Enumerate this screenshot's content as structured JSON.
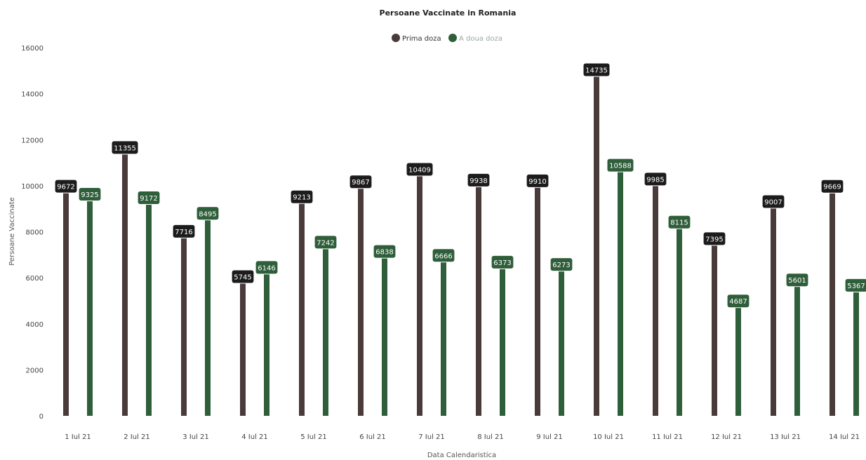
{
  "chart_data": {
    "type": "bar",
    "title": "Persoane Vaccinate in Romania",
    "xlabel": "Data Calendaristica",
    "ylabel": "Persoane Vaccinate",
    "ylim": [
      0,
      16000
    ],
    "yticks": [
      "0",
      "2000",
      "4000",
      "6000",
      "8000",
      "10000",
      "12000",
      "14000",
      "16000"
    ],
    "categories": [
      "1 Iul 21",
      "2 Iul 21",
      "3 Iul 21",
      "4 Iul 21",
      "5 Iul 21",
      "6 Iul 21",
      "7 Iul 21",
      "8 Iul 21",
      "9 Iul 21",
      "10 Iul 21",
      "11 Iul 21",
      "12 Iul 21",
      "13 Iul 21",
      "14 Iul 21"
    ],
    "series": [
      {
        "name": "Prima doza",
        "color": "#4a3b3b",
        "values": [
          9672,
          11355,
          7716,
          5745,
          9213,
          9867,
          10409,
          9938,
          9910,
          14735,
          9985,
          7395,
          9007,
          9669
        ]
      },
      {
        "name": "A doua doza",
        "color": "#2f5e3a",
        "values": [
          9325,
          9172,
          8495,
          6146,
          7242,
          6838,
          6666,
          6373,
          6273,
          10588,
          8115,
          4687,
          5601,
          5367
        ]
      }
    ],
    "grid": false,
    "legend_position": "top-center"
  }
}
